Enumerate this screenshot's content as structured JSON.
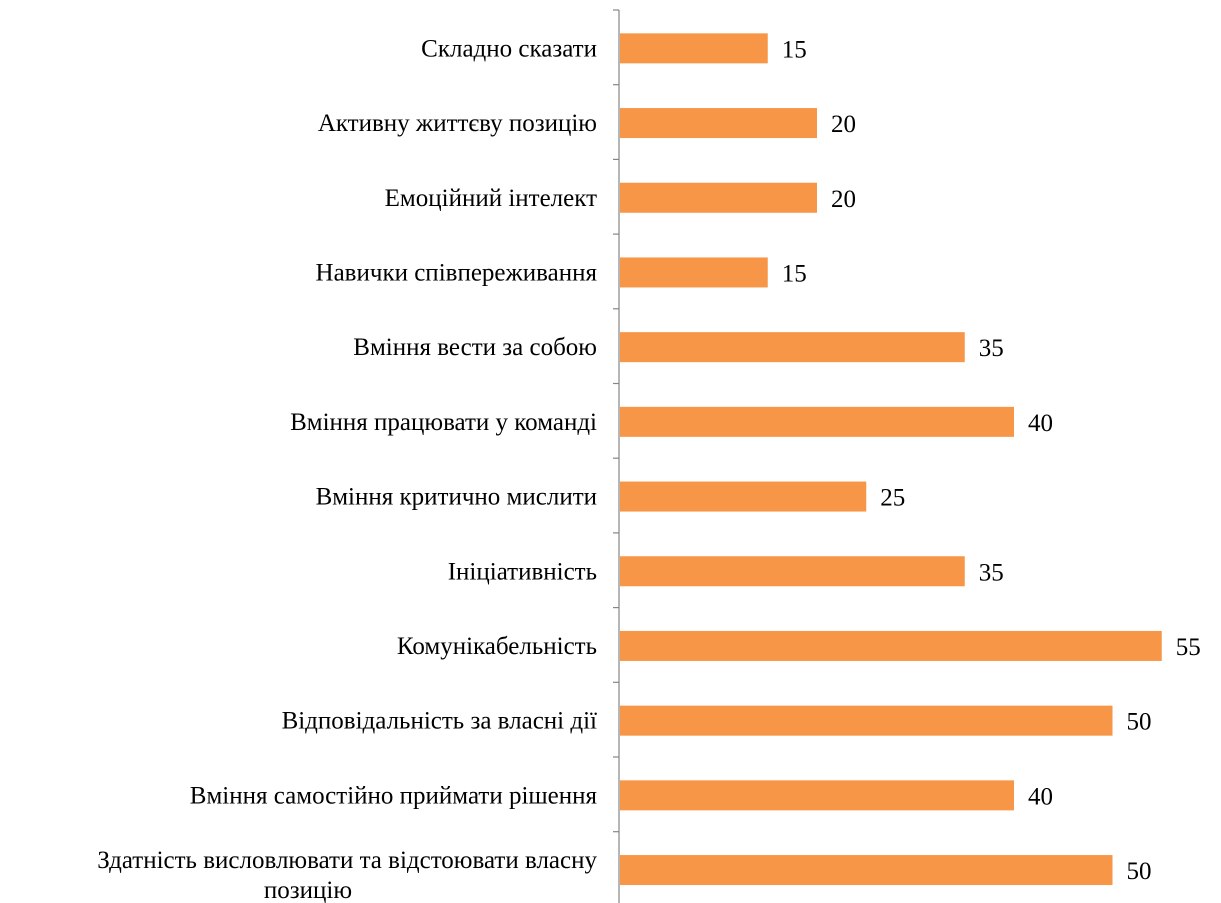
{
  "chart_data": {
    "type": "bar",
    "orientation": "horizontal",
    "categories": [
      "Складно сказати",
      "Активну життєву позицію",
      "Емоційний інтелект",
      "Навички співпереживання",
      "Вміння вести за собою ",
      "Вміння працювати у команді",
      "Вміння критично мислити",
      "Ініціативність",
      "Комунікабельність",
      "Відповідальність за власні дії ",
      "Вміння самостійно приймати рішення",
      "Здатність висловлювати та відстоювати власну позицію"
    ],
    "values": [
      15,
      20,
      20,
      15,
      35,
      40,
      25,
      35,
      55,
      50,
      40,
      50
    ],
    "data_labels": [
      "15",
      "20",
      "20",
      "15",
      "35",
      "40",
      "25",
      "35",
      "55",
      "50",
      "40",
      "50"
    ],
    "xlim": [
      0,
      60
    ],
    "grid": false,
    "legend": "none",
    "bar_color": "#f79646",
    "axis_color": "#868686"
  }
}
